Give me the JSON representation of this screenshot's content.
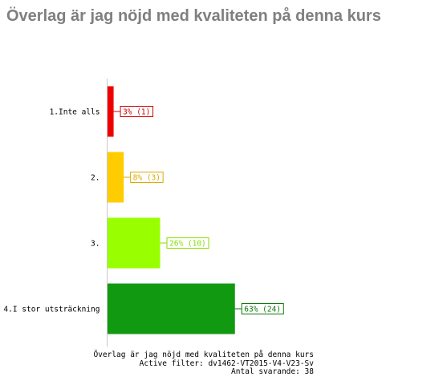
{
  "page": {
    "title": "Överlag är jag nöjd med kvaliteten på denna kurs"
  },
  "caption": {
    "question": "Överlag är jag nöjd med kvaliteten på denna kurs",
    "filter": "Active filter: dv1462-VT2015-V4-V23-Sv",
    "respondents": "Antal svarande: 38"
  },
  "chart_data": {
    "type": "bar",
    "orientation": "horizontal",
    "categories": [
      "1.Inte alls",
      "2.",
      "3.",
      "4.I stor utsträckning"
    ],
    "values": [
      3,
      8,
      26,
      63
    ],
    "counts": [
      1,
      3,
      10,
      24
    ],
    "value_labels": [
      "3% (1)",
      "8% (3)",
      "26% (10)",
      "63% (24)"
    ],
    "colors": [
      "#ee0000",
      "#ffcc00",
      "#99ff00",
      "#129912"
    ],
    "label_colors": [
      "#cc0000",
      "#ddaa00",
      "#88dd00",
      "#0a770a"
    ],
    "xlim": [
      0,
      100
    ],
    "grid": false,
    "legend": "none",
    "title": "",
    "xlabel": "",
    "ylabel": ""
  }
}
